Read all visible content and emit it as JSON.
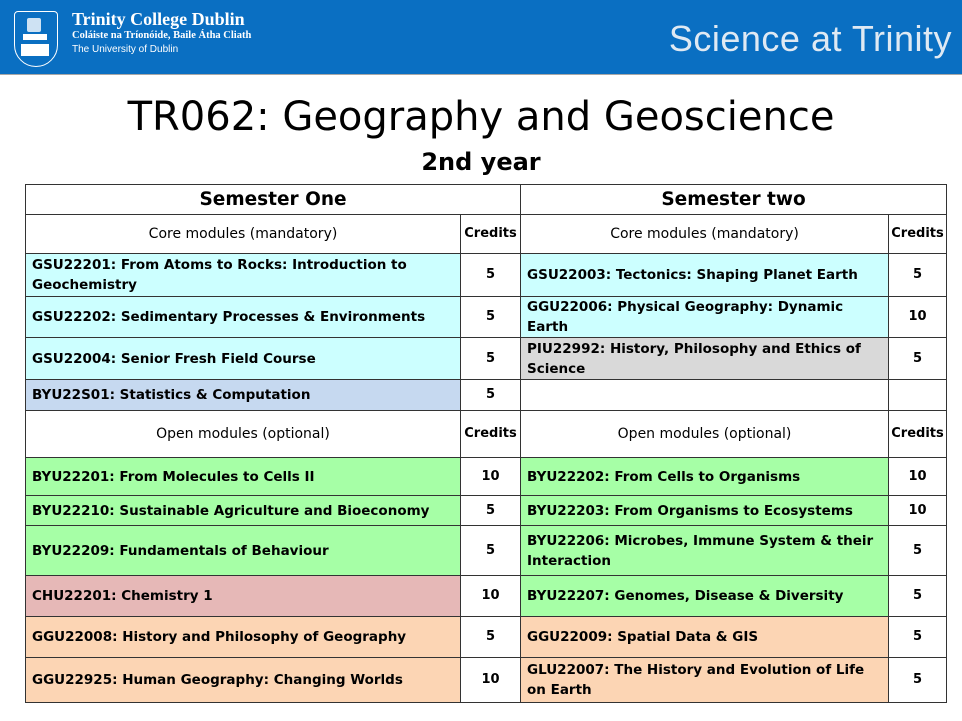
{
  "banner": {
    "college_name": "Trinity College Dublin",
    "irish_name": "Coláiste na Tríonóide, Baile Átha Cliath",
    "university": "The University of Dublin",
    "right_title": "Science at Trinity",
    "color": "#0a6fc2"
  },
  "title": "TR062: Geography and Geoscience",
  "subtitle": "2nd year",
  "table": {
    "semester_one": "Semester One",
    "semester_two": "Semester two",
    "core_header": "Core modules (mandatory)",
    "open_header": "Open modules (optional)",
    "credits_header": "Credits",
    "core_rows": [
      {
        "left": {
          "module": "GSU22201: From Atoms to Rocks: Introduction to Geochemistry",
          "credits": "5",
          "color": "#ccffff"
        },
        "right": {
          "module": "GSU22003: Tectonics: Shaping Planet Earth",
          "credits": "5",
          "color": "#ccffff"
        }
      },
      {
        "left": {
          "module": "GSU22202: Sedimentary Processes & Environments",
          "credits": "5",
          "color": "#ccffff"
        },
        "right": {
          "module": "GGU22006: Physical Geography: Dynamic Earth",
          "credits": "10",
          "color": "#ccffff"
        }
      },
      {
        "left": {
          "module": "GSU22004: Senior Fresh Field Course",
          "credits": "5",
          "color": "#ccffff"
        },
        "right": {
          "module": "PIU22992: History, Philosophy and Ethics of Science",
          "credits": "5",
          "color": "#d9d9d9"
        }
      },
      {
        "left": {
          "module": "BYU22S01: Statistics & Computation",
          "credits": "5",
          "color": "#c6d9f0"
        },
        "right": {
          "module": "",
          "credits": "",
          "color": "#ffffff"
        }
      }
    ],
    "open_rows": [
      {
        "left": {
          "module": "BYU22201: From Molecules to Cells II",
          "credits": "10",
          "color": "#a6ffa6"
        },
        "right": {
          "module": "BYU22202: From Cells to Organisms",
          "credits": "10",
          "color": "#a6ffa6"
        }
      },
      {
        "left": {
          "module": "BYU22210: Sustainable Agriculture and Bioeconomy",
          "credits": "5",
          "color": "#a6ffa6"
        },
        "right": {
          "module": "BYU22203: From Organisms to Ecosystems",
          "credits": "10",
          "color": "#a6ffa6"
        }
      },
      {
        "left": {
          "module": "BYU22209: Fundamentals of Behaviour",
          "credits": "5",
          "color": "#a6ffa6"
        },
        "right": {
          "module": "BYU22206: Microbes, Immune System & their Interaction",
          "credits": "5",
          "color": "#a6ffa6"
        }
      },
      {
        "left": {
          "module": "CHU22201: Chemistry 1",
          "credits": "10",
          "color": "#e6b8b7"
        },
        "right": {
          "module": "BYU22207: Genomes, Disease & Diversity",
          "credits": "5",
          "color": "#a6ffa6"
        }
      },
      {
        "left": {
          "module": "GGU22008: History and Philosophy of Geography",
          "credits": "5",
          "color": "#fcd5b4"
        },
        "right": {
          "module": "GGU22009: Spatial Data & GIS",
          "credits": "5",
          "color": "#fcd5b4"
        }
      },
      {
        "left": {
          "module": "GGU22925: Human Geography: Changing Worlds",
          "credits": "10",
          "color": "#fcd5b4"
        },
        "right": {
          "module": "GLU22007: The History and Evolution of Life on Earth",
          "credits": "5",
          "color": "#fcd5b4"
        }
      }
    ]
  }
}
